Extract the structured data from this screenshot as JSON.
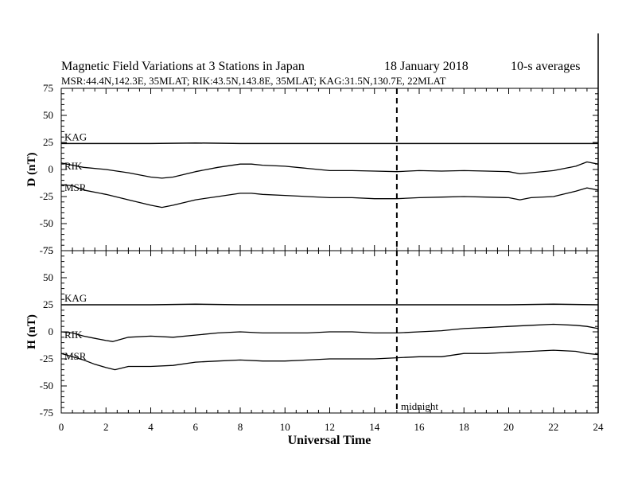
{
  "chart_data": {
    "type": "line",
    "title": "Magnetic Field Variations at 3 Stations in Japan",
    "date": "18 January  2018",
    "averaging": "10-s averages",
    "subtitle": "MSR:44.4N,142.3E, 35MLAT;  RIK:43.5N,143.8E, 35MLAT;  KAG:31.5N,130.7E, 22MLAT",
    "xlabel": "Universal Time",
    "x_ticks": [
      "0",
      "2",
      "4",
      "6",
      "8",
      "10",
      "12",
      "14",
      "16",
      "18",
      "20",
      "22",
      "24"
    ],
    "xlim": [
      0,
      24
    ],
    "annotation": "midnight",
    "midnight_ut": 15,
    "panels": [
      {
        "ylabel": "D (nT)",
        "ylim": [
          -75,
          75
        ],
        "y_ticks": [
          "75",
          "50",
          "25",
          "0",
          "-25",
          "-50",
          "-75"
        ],
        "series": [
          {
            "name": "KAG",
            "x": [
              0,
              2,
              4,
              6,
              8,
              10,
              12,
              14,
              16,
              18,
              20,
              22,
              24
            ],
            "y": [
              24,
              24,
              24,
              24.5,
              24,
              24,
              24,
              24,
              24,
              24,
              24,
              24,
              24
            ]
          },
          {
            "name": "RIK",
            "x": [
              0,
              0.5,
              1,
              2,
              3,
              4,
              4.5,
              5,
              6,
              7,
              8,
              8.5,
              9,
              10,
              11,
              12,
              13,
              14,
              15,
              16,
              17,
              18,
              19,
              20,
              20.5,
              21,
              22,
              23,
              23.5,
              24
            ],
            "y": [
              6,
              4,
              2,
              0,
              -3,
              -7,
              -8,
              -7,
              -2,
              2,
              5,
              5,
              4,
              3,
              1,
              -1,
              -1,
              -1.5,
              -2,
              -1,
              -1.5,
              -1,
              -1.5,
              -2,
              -4,
              -3,
              -1,
              3,
              7,
              5
            ]
          },
          {
            "name": "MSR",
            "x": [
              0,
              0.5,
              1,
              2,
              3,
              4,
              4.5,
              5,
              6,
              7,
              8,
              8.5,
              9,
              10,
              11,
              12,
              13,
              14,
              15,
              16,
              17,
              18,
              19,
              20,
              20.5,
              21,
              22,
              23,
              23.5,
              24
            ],
            "y": [
              -14,
              -15,
              -19,
              -23,
              -28,
              -33,
              -35,
              -33,
              -28,
              -25,
              -22,
              -22,
              -23,
              -24,
              -25,
              -26,
              -26,
              -27,
              -27,
              -26,
              -25.5,
              -25,
              -25.5,
              -26,
              -28,
              -26,
              -25,
              -20,
              -17,
              -19
            ]
          }
        ]
      },
      {
        "ylabel": "H (nT)",
        "ylim": [
          -75,
          75
        ],
        "y_ticks": [
          "75",
          "50",
          "25",
          "0",
          "-25",
          "-50",
          "-75"
        ],
        "series": [
          {
            "name": "KAG",
            "x": [
              0,
              2,
              4,
              6,
              8,
              10,
              12,
              14,
              16,
              18,
              20,
              22,
              24
            ],
            "y": [
              25,
              25,
              25,
              25.5,
              25,
              25,
              25,
              25,
              25,
              25,
              25,
              25.5,
              25
            ]
          },
          {
            "name": "RIK",
            "x": [
              0,
              0.5,
              1,
              1.5,
              2,
              2.3,
              3,
              4,
              5,
              6,
              7,
              8,
              9,
              10,
              11,
              12,
              13,
              14,
              15,
              16,
              17,
              18,
              19,
              20,
              21,
              22,
              23,
              23.5,
              24
            ],
            "y": [
              0,
              -1,
              -4,
              -6,
              -8,
              -9,
              -5,
              -4,
              -5,
              -3,
              -1,
              0,
              -1,
              -1,
              -1,
              0,
              0,
              -1,
              -1,
              0,
              1,
              3,
              4,
              5,
              6,
              7,
              6,
              5,
              3
            ]
          },
          {
            "name": "MSR",
            "x": [
              0,
              0.5,
              1,
              1.5,
              2,
              2.4,
              3,
              4,
              5,
              6,
              7,
              8,
              9,
              10,
              11,
              12,
              13,
              14,
              15,
              16,
              17,
              18,
              19,
              20,
              21,
              22,
              23,
              23.5,
              24
            ],
            "y": [
              -20,
              -23,
              -26,
              -30,
              -33,
              -35,
              -32,
              -32,
              -31,
              -28,
              -27,
              -26,
              -27,
              -27,
              -26,
              -25,
              -25,
              -25,
              -24,
              -23,
              -23,
              -20,
              -20,
              -19,
              -18,
              -17,
              -18,
              -20,
              -21
            ]
          }
        ]
      }
    ]
  }
}
